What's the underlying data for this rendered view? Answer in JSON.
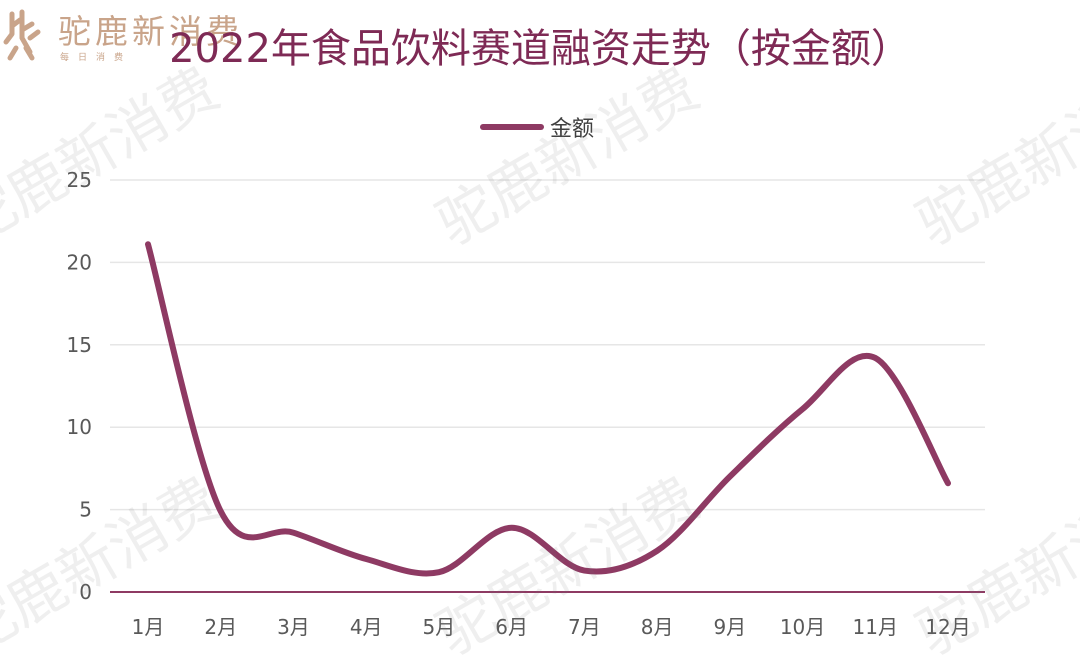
{
  "brand": {
    "name": "驼鹿新消费",
    "tagline": "每日消费",
    "color": "#c9a48a"
  },
  "watermark_text": "驼鹿新消费",
  "chart_data": {
    "type": "line",
    "title": "2022年食品饮料赛道融资走势（按金额）",
    "categories": [
      "1月",
      "2月",
      "3月",
      "4月",
      "5月",
      "6月",
      "7月",
      "8月",
      "9月",
      "10月",
      "11月",
      "12月"
    ],
    "series": [
      {
        "name": "金额",
        "values": [
          21.1,
          4.9,
          3.6,
          2.0,
          1.2,
          3.9,
          1.3,
          2.5,
          7.0,
          11.1,
          14.2,
          6.6
        ],
        "color": "#8e3a63"
      }
    ],
    "yticks": [
      0,
      5,
      10,
      15,
      20,
      25
    ],
    "ylim": [
      0,
      25
    ],
    "xlabel": "",
    "ylabel": "",
    "grid": true,
    "legend_position": "top-center",
    "colors": {
      "title": "#7e2a55",
      "line": "#8e3a63",
      "grid": "#e6e6e6",
      "axis": "#8e3a63",
      "tick_label": "#595959"
    }
  }
}
